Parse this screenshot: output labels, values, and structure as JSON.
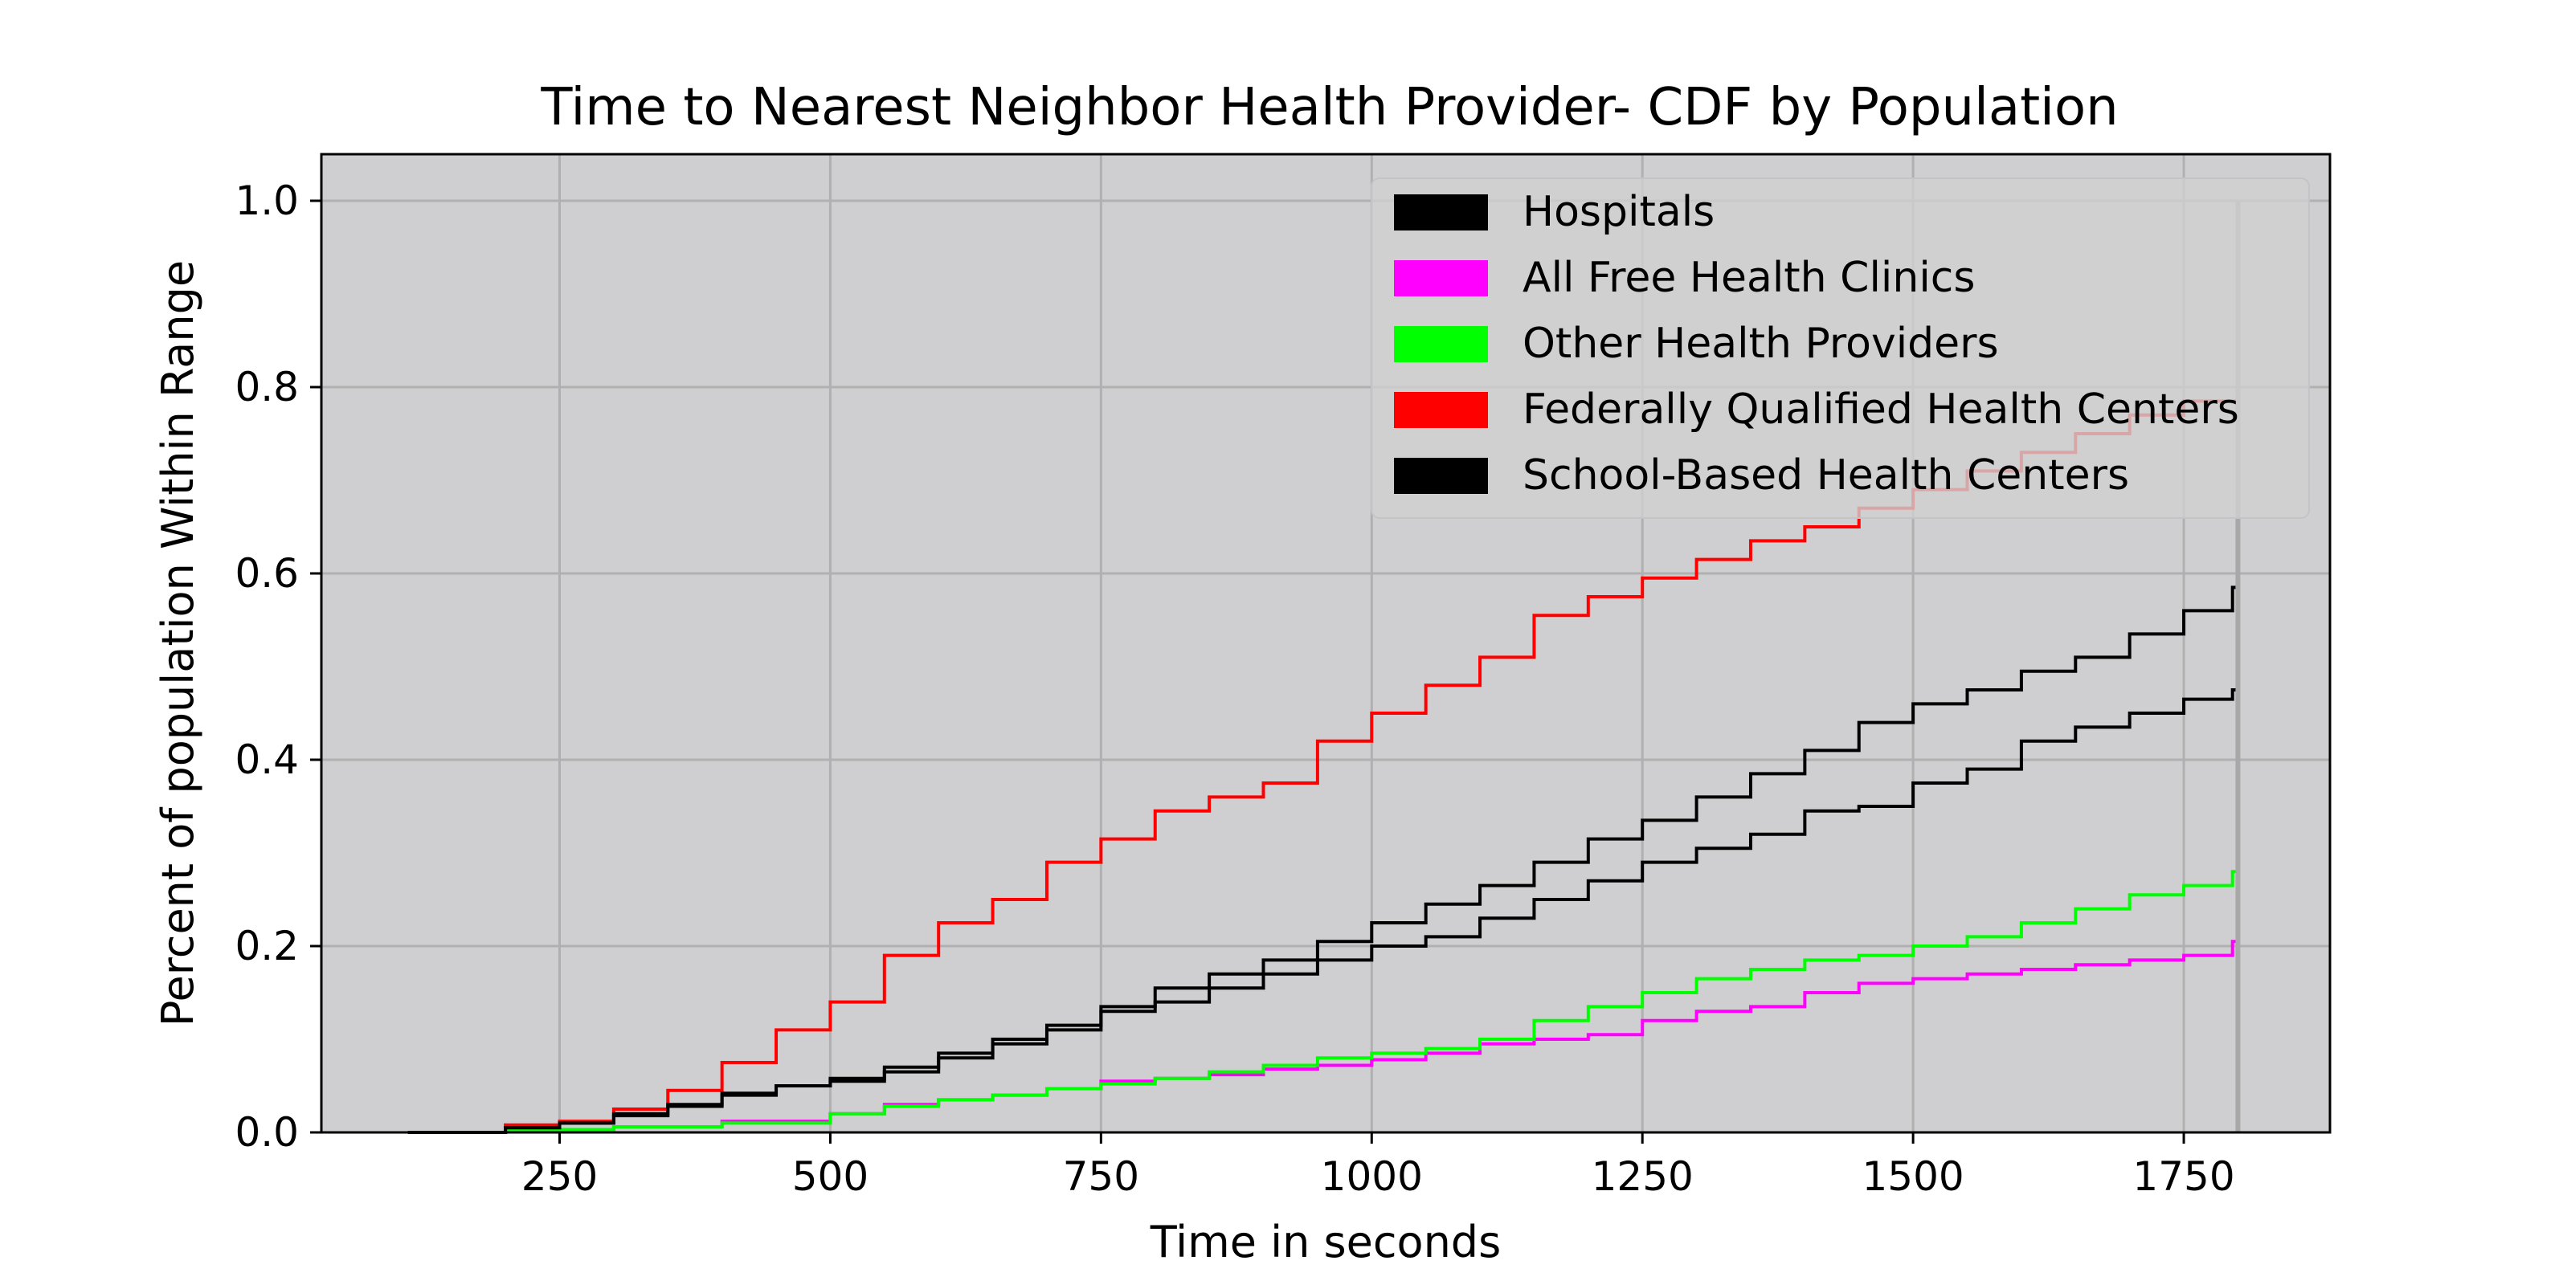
{
  "chart_data": {
    "type": "line",
    "title": "Time to Nearest Neighbor Health Provider- CDF by Population",
    "xlabel": "Time in seconds",
    "ylabel": "Percent of population Within Range",
    "xlim": [
      30,
      1885
    ],
    "ylim": [
      0,
      1.05
    ],
    "xticks": [
      250,
      500,
      750,
      1000,
      1250,
      1500,
      1750
    ],
    "yticks": [
      0.0,
      0.2,
      0.4,
      0.6,
      0.8,
      1.0
    ],
    "xtick_labels": [
      "250",
      "500",
      "750",
      "1000",
      "1250",
      "1500",
      "1750"
    ],
    "ytick_labels": [
      "0.0",
      "0.2",
      "0.4",
      "0.6",
      "0.8",
      "1.0"
    ],
    "grid": true,
    "plot_background": "#cfcfd1",
    "legend_position": "top-right",
    "step": true,
    "series": [
      {
        "name": "Hospitals",
        "color": "#000000",
        "x": [
          110,
          200,
          250,
          300,
          350,
          400,
          450,
          500,
          550,
          600,
          650,
          700,
          750,
          800,
          850,
          900,
          950,
          1000,
          1050,
          1100,
          1150,
          1200,
          1250,
          1300,
          1350,
          1400,
          1450,
          1500,
          1550,
          1600,
          1650,
          1700,
          1750,
          1795,
          1800
        ],
        "y": [
          0.0,
          0.004,
          0.01,
          0.018,
          0.028,
          0.04,
          0.05,
          0.055,
          0.065,
          0.08,
          0.095,
          0.11,
          0.13,
          0.14,
          0.155,
          0.17,
          0.185,
          0.2,
          0.21,
          0.23,
          0.25,
          0.27,
          0.29,
          0.305,
          0.32,
          0.345,
          0.35,
          0.375,
          0.39,
          0.42,
          0.435,
          0.45,
          0.465,
          0.475,
          0.0
        ]
      },
      {
        "name": "All Free Health Clinics",
        "color": "#ff00ff",
        "x": [
          110,
          200,
          300,
          400,
          500,
          550,
          600,
          650,
          700,
          750,
          800,
          850,
          900,
          950,
          1000,
          1050,
          1100,
          1150,
          1200,
          1250,
          1300,
          1350,
          1400,
          1450,
          1500,
          1550,
          1600,
          1650,
          1700,
          1750,
          1795,
          1800
        ],
        "y": [
          0.0,
          0.003,
          0.006,
          0.012,
          0.02,
          0.03,
          0.035,
          0.04,
          0.047,
          0.055,
          0.058,
          0.062,
          0.068,
          0.072,
          0.078,
          0.085,
          0.095,
          0.1,
          0.105,
          0.12,
          0.13,
          0.135,
          0.15,
          0.16,
          0.165,
          0.17,
          0.175,
          0.18,
          0.185,
          0.19,
          0.205,
          0.28
        ]
      },
      {
        "name": "Other Health Providers",
        "color": "#00ff00",
        "x": [
          110,
          200,
          300,
          400,
          500,
          550,
          600,
          650,
          700,
          750,
          800,
          850,
          900,
          950,
          1000,
          1050,
          1100,
          1150,
          1200,
          1250,
          1300,
          1350,
          1400,
          1450,
          1500,
          1550,
          1600,
          1650,
          1700,
          1750,
          1795,
          1800
        ],
        "y": [
          0.0,
          0.003,
          0.006,
          0.01,
          0.02,
          0.028,
          0.035,
          0.04,
          0.047,
          0.052,
          0.058,
          0.065,
          0.072,
          0.08,
          0.085,
          0.09,
          0.1,
          0.12,
          0.135,
          0.15,
          0.165,
          0.175,
          0.185,
          0.19,
          0.2,
          0.21,
          0.225,
          0.24,
          0.255,
          0.265,
          0.28,
          0.48
        ]
      },
      {
        "name": "Federally Qualified Health Centers",
        "color": "#ff0000",
        "x": [
          110,
          200,
          250,
          300,
          350,
          400,
          450,
          500,
          550,
          600,
          650,
          700,
          750,
          800,
          850,
          900,
          950,
          1000,
          1050,
          1100,
          1150,
          1200,
          1250,
          1300,
          1350,
          1400,
          1450,
          1500,
          1550,
          1600,
          1650,
          1700,
          1750,
          1800
        ],
        "y": [
          0.0,
          0.008,
          0.012,
          0.025,
          0.045,
          0.075,
          0.11,
          0.14,
          0.19,
          0.225,
          0.25,
          0.29,
          0.315,
          0.345,
          0.36,
          0.375,
          0.42,
          0.45,
          0.48,
          0.51,
          0.555,
          0.575,
          0.595,
          0.615,
          0.635,
          0.65,
          0.67,
          0.69,
          0.71,
          0.73,
          0.75,
          0.77,
          0.785,
          0.805
        ]
      },
      {
        "name": "School-Based Health Centers",
        "color": "#000000",
        "x": [
          110,
          200,
          250,
          300,
          350,
          400,
          450,
          500,
          550,
          600,
          650,
          700,
          750,
          800,
          850,
          900,
          950,
          1000,
          1050,
          1100,
          1150,
          1200,
          1250,
          1300,
          1350,
          1400,
          1450,
          1500,
          1550,
          1600,
          1650,
          1700,
          1750,
          1795,
          1800
        ],
        "y": [
          0.0,
          0.005,
          0.01,
          0.02,
          0.03,
          0.042,
          0.05,
          0.058,
          0.07,
          0.085,
          0.1,
          0.115,
          0.135,
          0.155,
          0.17,
          0.185,
          0.205,
          0.225,
          0.245,
          0.265,
          0.29,
          0.315,
          0.335,
          0.36,
          0.385,
          0.41,
          0.44,
          0.46,
          0.475,
          0.495,
          0.51,
          0.535,
          0.56,
          0.585,
          0.66
        ]
      }
    ]
  }
}
